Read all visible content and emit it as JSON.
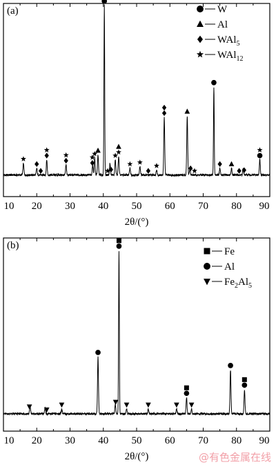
{
  "chart_data": [
    {
      "type": "line",
      "panel_label": "(a)",
      "xlabel": "2θ/(°)",
      "ylabel": "",
      "xlim": [
        10,
        90
      ],
      "x_ticks": [
        "10",
        "20",
        "30",
        "40",
        "50",
        "60",
        "70",
        "80",
        "90"
      ],
      "grid": false,
      "legend_placement": "top-right",
      "legend": [
        {
          "marker": "circle",
          "label": "W",
          "sub": ""
        },
        {
          "marker": "triangle",
          "label": "Al",
          "sub": ""
        },
        {
          "marker": "diamond",
          "label": "WAl",
          "sub": "5"
        },
        {
          "marker": "star",
          "label": "WAl",
          "sub": "12"
        }
      ],
      "baseline": 0.05,
      "peaks": [
        {
          "x": 16.0,
          "h": 0.07
        },
        {
          "x": 20.0,
          "h": 0.04
        },
        {
          "x": 23.0,
          "h": 0.09
        },
        {
          "x": 28.8,
          "h": 0.06
        },
        {
          "x": 36.8,
          "h": 0.06
        },
        {
          "x": 37.4,
          "h": 0.1
        },
        {
          "x": 38.4,
          "h": 0.12
        },
        {
          "x": 40.3,
          "h": 1.0
        },
        {
          "x": 42.0,
          "h": 0.07
        },
        {
          "x": 43.6,
          "h": 0.09
        },
        {
          "x": 44.6,
          "h": 0.11
        },
        {
          "x": 48.0,
          "h": 0.04
        },
        {
          "x": 51.0,
          "h": 0.05
        },
        {
          "x": 56.0,
          "h": 0.03
        },
        {
          "x": 58.3,
          "h": 0.34
        },
        {
          "x": 65.2,
          "h": 0.35
        },
        {
          "x": 66.0,
          "h": 0.04
        },
        {
          "x": 73.2,
          "h": 0.52
        },
        {
          "x": 75.0,
          "h": 0.04
        },
        {
          "x": 78.5,
          "h": 0.04
        },
        {
          "x": 82.0,
          "h": 0.04
        },
        {
          "x": 87.0,
          "h": 0.09
        }
      ],
      "markers": [
        {
          "x": 16.0,
          "shapes": [
            "star"
          ]
        },
        {
          "x": 20.0,
          "shapes": [
            "diamond"
          ]
        },
        {
          "x": 21.2,
          "shapes": [
            "diamond"
          ]
        },
        {
          "x": 23.0,
          "shapes": [
            "star",
            "diamond"
          ]
        },
        {
          "x": 28.8,
          "shapes": [
            "star",
            "diamond"
          ]
        },
        {
          "x": 36.7,
          "shapes": [
            "star",
            "diamond"
          ]
        },
        {
          "x": 37.4,
          "shapes": [
            "star"
          ]
        },
        {
          "x": 38.4,
          "shapes": [
            "triangle"
          ]
        },
        {
          "x": 40.3,
          "shapes": [
            "circle"
          ]
        },
        {
          "x": 41.3,
          "shapes": [
            "star"
          ]
        },
        {
          "x": 42.3,
          "shapes": [
            "diamond"
          ]
        },
        {
          "x": 43.6,
          "shapes": [
            "star"
          ]
        },
        {
          "x": 44.6,
          "shapes": [
            "triangle",
            "star"
          ]
        },
        {
          "x": 48.0,
          "shapes": [
            "star"
          ]
        },
        {
          "x": 51.0,
          "shapes": [
            "star"
          ]
        },
        {
          "x": 53.5,
          "shapes": [
            "diamond"
          ]
        },
        {
          "x": 56.0,
          "shapes": [
            "star"
          ]
        },
        {
          "x": 58.3,
          "shapes": [
            "diamond",
            "diamond"
          ]
        },
        {
          "x": 65.2,
          "shapes": [
            "triangle"
          ]
        },
        {
          "x": 66.2,
          "shapes": [
            "diamond"
          ]
        },
        {
          "x": 67.4,
          "shapes": [
            "star"
          ]
        },
        {
          "x": 73.2,
          "shapes": [
            "circle"
          ]
        },
        {
          "x": 75.0,
          "shapes": [
            "diamond"
          ]
        },
        {
          "x": 78.5,
          "shapes": [
            "triangle"
          ]
        },
        {
          "x": 80.8,
          "shapes": [
            "diamond"
          ]
        },
        {
          "x": 82.3,
          "shapes": [
            "diamond"
          ]
        },
        {
          "x": 87.0,
          "shapes": [
            "star",
            "circle"
          ]
        }
      ]
    },
    {
      "type": "line",
      "panel_label": "(b)",
      "xlabel": "2θ/(°)",
      "ylabel": "",
      "xlim": [
        10,
        90
      ],
      "x_ticks": [
        "10",
        "20",
        "30",
        "40",
        "50",
        "60",
        "70",
        "80",
        "90"
      ],
      "grid": false,
      "legend_placement": "top-right",
      "legend": [
        {
          "marker": "square",
          "label": "Fe",
          "sub": ""
        },
        {
          "marker": "circle",
          "label": "Al",
          "sub": ""
        },
        {
          "marker": "triangle-down",
          "label": "Fe",
          "sub": "2",
          "suffix": "Al",
          "sub2": "5"
        }
      ],
      "baseline": 0.03,
      "peaks": [
        {
          "x": 18.0,
          "h": 0.05
        },
        {
          "x": 22.5,
          "h": 0.04
        },
        {
          "x": 27.5,
          "h": 0.03
        },
        {
          "x": 38.4,
          "h": 0.35
        },
        {
          "x": 43.6,
          "h": 0.06
        },
        {
          "x": 44.7,
          "h": 1.0
        },
        {
          "x": 47.0,
          "h": 0.03
        },
        {
          "x": 53.5,
          "h": 0.03
        },
        {
          "x": 62.0,
          "h": 0.03
        },
        {
          "x": 65.0,
          "h": 0.1
        },
        {
          "x": 66.5,
          "h": 0.03
        },
        {
          "x": 78.2,
          "h": 0.27
        },
        {
          "x": 82.4,
          "h": 0.15
        }
      ],
      "markers": [
        {
          "x": 17.8,
          "shapes": [
            "triangle-down"
          ]
        },
        {
          "x": 23.0,
          "shapes": [
            "triangle-down"
          ]
        },
        {
          "x": 27.5,
          "shapes": [
            "triangle-down"
          ]
        },
        {
          "x": 38.4,
          "shapes": [
            "circle"
          ]
        },
        {
          "x": 43.7,
          "shapes": [
            "triangle-down"
          ]
        },
        {
          "x": 44.7,
          "shapes": [
            "square",
            "circle"
          ]
        },
        {
          "x": 47.0,
          "shapes": [
            "triangle-down"
          ]
        },
        {
          "x": 53.5,
          "shapes": [
            "triangle-down"
          ]
        },
        {
          "x": 62.0,
          "shapes": [
            "triangle-down"
          ]
        },
        {
          "x": 65.0,
          "shapes": [
            "square",
            "circle"
          ]
        },
        {
          "x": 66.5,
          "shapes": [
            "triangle-down"
          ]
        },
        {
          "x": 78.2,
          "shapes": [
            "circle"
          ]
        },
        {
          "x": 82.4,
          "shapes": [
            "square",
            "circle"
          ]
        }
      ]
    }
  ],
  "watermark": "@有色金属在线"
}
